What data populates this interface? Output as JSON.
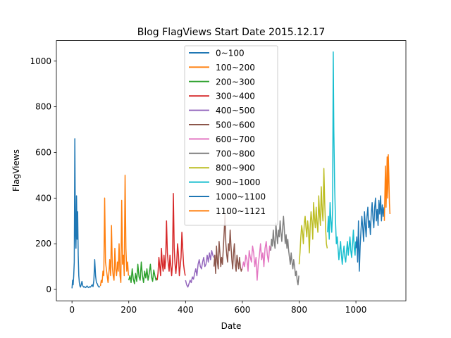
{
  "chart_data": {
    "type": "line",
    "title": "Blog FlagViews Start Date 2015.12.17",
    "xlabel": "Date",
    "ylabel": "FlagViews",
    "xlim": [
      -55,
      1176
    ],
    "ylim": [
      -50,
      1090
    ],
    "xticks": [
      0,
      200,
      400,
      600,
      800,
      1000
    ],
    "yticks": [
      0,
      200,
      400,
      600,
      800,
      1000
    ],
    "grid": false,
    "legend_position": "upper-center",
    "series": [
      {
        "name": "0~100",
        "color": "#1f77b4",
        "x": [
          0,
          2,
          4,
          6,
          8,
          10,
          12,
          14,
          16,
          18,
          20,
          22,
          24,
          26,
          28,
          30,
          32,
          35,
          38,
          41,
          44,
          47,
          50,
          53,
          56,
          59,
          62,
          65,
          68,
          71,
          74,
          77,
          80,
          83,
          86,
          89,
          92,
          95,
          99
        ],
        "y": [
          5,
          40,
          20,
          60,
          120,
          660,
          240,
          180,
          410,
          220,
          340,
          150,
          60,
          30,
          15,
          10,
          20,
          35,
          15,
          10,
          12,
          8,
          10,
          15,
          10,
          8,
          12,
          10,
          15,
          20,
          12,
          40,
          130,
          60,
          30,
          25,
          15,
          10,
          12
        ]
      },
      {
        "name": "100~200",
        "color": "#ff7f0e",
        "x": [
          100,
          103,
          106,
          109,
          112,
          115,
          118,
          121,
          124,
          127,
          130,
          133,
          136,
          139,
          142,
          145,
          148,
          151,
          154,
          157,
          160,
          163,
          166,
          169,
          172,
          175,
          178,
          181,
          184,
          187,
          190,
          193,
          196,
          199
        ],
        "y": [
          15,
          40,
          30,
          80,
          60,
          400,
          120,
          90,
          60,
          30,
          70,
          130,
          60,
          280,
          100,
          60,
          40,
          180,
          90,
          60,
          120,
          80,
          200,
          60,
          30,
          390,
          110,
          150,
          60,
          500,
          180,
          80,
          120,
          60
        ]
      },
      {
        "name": "200~300",
        "color": "#2ca02c",
        "x": [
          200,
          204,
          208,
          212,
          216,
          220,
          224,
          228,
          232,
          236,
          240,
          244,
          248,
          252,
          256,
          260,
          264,
          268,
          272,
          276,
          280,
          284,
          288,
          292,
          296,
          299
        ],
        "y": [
          40,
          60,
          30,
          90,
          45,
          25,
          70,
          35,
          110,
          55,
          40,
          120,
          60,
          30,
          80,
          50,
          90,
          40,
          70,
          110,
          55,
          35,
          85,
          60,
          40,
          50
        ]
      },
      {
        "name": "300~400",
        "color": "#d62728",
        "x": [
          300,
          303,
          306,
          309,
          312,
          315,
          318,
          321,
          324,
          327,
          330,
          333,
          336,
          339,
          342,
          345,
          348,
          351,
          354,
          357,
          360,
          363,
          366,
          369,
          372,
          375,
          378,
          381,
          384,
          387,
          390,
          393,
          396,
          399
        ],
        "y": [
          40,
          70,
          140,
          100,
          60,
          180,
          110,
          80,
          150,
          90,
          130,
          300,
          160,
          110,
          80,
          150,
          100,
          60,
          120,
          420,
          180,
          110,
          70,
          120,
          200,
          150,
          60,
          100,
          140,
          250,
          180,
          110,
          80,
          60
        ]
      },
      {
        "name": "400~500",
        "color": "#9467bd",
        "x": [
          400,
          404,
          408,
          412,
          416,
          420,
          424,
          428,
          432,
          436,
          440,
          444,
          448,
          452,
          456,
          460,
          464,
          468,
          472,
          476,
          480,
          484,
          488,
          492,
          496,
          499
        ],
        "y": [
          40,
          20,
          10,
          25,
          40,
          30,
          55,
          45,
          70,
          90,
          60,
          110,
          130,
          100,
          90,
          120,
          140,
          100,
          110,
          150,
          120,
          160,
          130,
          170,
          150,
          140
        ]
      },
      {
        "name": "500~600",
        "color": "#8c564b",
        "x": [
          500,
          503,
          506,
          509,
          512,
          515,
          518,
          521,
          524,
          527,
          530,
          533,
          536,
          539,
          542,
          545,
          548,
          551,
          554,
          557,
          560,
          563,
          566,
          569,
          572,
          575,
          578,
          581,
          584,
          587,
          590,
          593,
          596,
          599
        ],
        "y": [
          100,
          150,
          70,
          190,
          120,
          90,
          210,
          160,
          100,
          140,
          110,
          180,
          250,
          330,
          200,
          150,
          120,
          200,
          170,
          260,
          190,
          130,
          90,
          160,
          200,
          110,
          80,
          150,
          120,
          90,
          140,
          100,
          80,
          90
        ]
      },
      {
        "name": "600~700",
        "color": "#e377c2",
        "x": [
          600,
          604,
          608,
          612,
          616,
          620,
          624,
          628,
          632,
          636,
          640,
          644,
          648,
          652,
          656,
          660,
          664,
          668,
          672,
          676,
          680,
          684,
          688,
          692,
          696,
          699
        ],
        "y": [
          90,
          120,
          100,
          150,
          130,
          80,
          170,
          140,
          120,
          190,
          160,
          100,
          140,
          40,
          110,
          150,
          200,
          130,
          160,
          100,
          180,
          210,
          150,
          120,
          190,
          170
        ]
      },
      {
        "name": "700~800",
        "color": "#7f7f7f",
        "x": [
          700,
          703,
          706,
          709,
          712,
          715,
          718,
          721,
          724,
          727,
          730,
          733,
          736,
          739,
          742,
          745,
          748,
          751,
          754,
          757,
          760,
          763,
          766,
          769,
          772,
          775,
          778,
          781,
          784,
          787,
          790,
          793,
          796,
          799
        ],
        "y": [
          170,
          220,
          190,
          260,
          210,
          180,
          290,
          240,
          200,
          260,
          230,
          300,
          250,
          210,
          270,
          320,
          260,
          200,
          240,
          180,
          220,
          170,
          140,
          110,
          160,
          120,
          90,
          130,
          100,
          60,
          80,
          40,
          20,
          60
        ]
      },
      {
        "name": "800~900",
        "color": "#bcbd22",
        "x": [
          800,
          803,
          806,
          809,
          812,
          815,
          818,
          821,
          824,
          827,
          830,
          833,
          836,
          839,
          842,
          845,
          848,
          851,
          854,
          857,
          860,
          863,
          866,
          869,
          872,
          875,
          878,
          881,
          884,
          887,
          890,
          893,
          896,
          899
        ],
        "y": [
          110,
          160,
          230,
          280,
          250,
          200,
          290,
          320,
          270,
          230,
          300,
          260,
          160,
          280,
          340,
          300,
          220,
          380,
          310,
          270,
          360,
          290,
          250,
          410,
          330,
          280,
          450,
          350,
          300,
          530,
          380,
          270,
          200,
          180
        ]
      },
      {
        "name": "900~1000",
        "color": "#17becf",
        "x": [
          900,
          903,
          906,
          909,
          912,
          915,
          918,
          920,
          922,
          925,
          928,
          931,
          934,
          937,
          940,
          943,
          946,
          949,
          952,
          955,
          958,
          961,
          964,
          967,
          970,
          973,
          976,
          979,
          982,
          985,
          988,
          991,
          994,
          997,
          999
        ],
        "y": [
          250,
          320,
          220,
          380,
          300,
          250,
          350,
          1040,
          700,
          450,
          300,
          200,
          230,
          180,
          130,
          170,
          210,
          150,
          110,
          160,
          190,
          140,
          120,
          170,
          210,
          150,
          190,
          230,
          170,
          140,
          200,
          260,
          180,
          150,
          210
        ]
      },
      {
        "name": "1000~1100",
        "color": "#1f77b4",
        "x": [
          1000,
          1003,
          1006,
          1009,
          1012,
          1015,
          1018,
          1021,
          1024,
          1027,
          1030,
          1033,
          1036,
          1039,
          1042,
          1045,
          1048,
          1051,
          1054,
          1057,
          1060,
          1063,
          1066,
          1069,
          1072,
          1075,
          1078,
          1081,
          1084,
          1087,
          1090,
          1093,
          1096,
          1099
        ],
        "y": [
          180,
          230,
          120,
          300,
          80,
          190,
          260,
          320,
          270,
          210,
          340,
          280,
          230,
          320,
          360,
          270,
          300,
          240,
          330,
          380,
          310,
          270,
          360,
          400,
          300,
          350,
          280,
          390,
          330,
          410,
          300,
          370,
          320,
          360
        ]
      },
      {
        "name": "1100~1121",
        "color": "#ff7f0e",
        "x": [
          1100,
          1102,
          1104,
          1106,
          1108,
          1110,
          1112,
          1114,
          1116,
          1118,
          1120
        ],
        "y": [
          300,
          420,
          540,
          360,
          450,
          580,
          400,
          590,
          500,
          380,
          330
        ]
      }
    ]
  }
}
